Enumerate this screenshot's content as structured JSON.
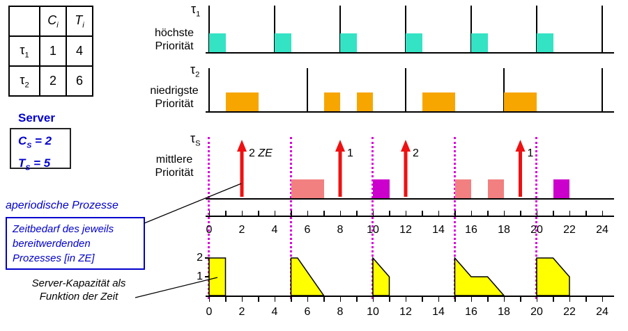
{
  "colors": {
    "accent_blue": "#0000cc"
  },
  "task_table": {
    "col_headers": [
      {
        "base": "C",
        "sub": "i"
      },
      {
        "base": "T",
        "sub": "i"
      }
    ],
    "rows": [
      {
        "task": {
          "base": "τ",
          "sub": "1"
        },
        "c": "1",
        "t": "4"
      },
      {
        "task": {
          "base": "τ",
          "sub": "2"
        },
        "c": "2",
        "t": "6"
      }
    ]
  },
  "server_panel": {
    "title": "Server",
    "lines": [
      {
        "base": "C",
        "sub": "S",
        "rest": " = 2"
      },
      {
        "base": "T",
        "sub": "S",
        "rest": " = 5"
      }
    ]
  },
  "annotations": {
    "aperiodic": "aperiodische Prozesse",
    "zeitbedarf": [
      "Zeitbedarf des jeweils",
      "bereitwerdenden",
      "Prozesses [in ZE]"
    ],
    "capacity": [
      "Server-Kapazität als",
      "Funktion der Zeit"
    ]
  },
  "timelines": {
    "tau1": {
      "label": {
        "base": "τ",
        "sub": "1"
      },
      "priority": [
        "höchste",
        "Priorität"
      ],
      "period": 4,
      "color": "#33e3c4",
      "releases": [
        0,
        4,
        8,
        12,
        16,
        20,
        24
      ],
      "blocks": [
        {
          "start": 0,
          "len": 1
        },
        {
          "start": 4,
          "len": 1
        },
        {
          "start": 8,
          "len": 1
        },
        {
          "start": 12,
          "len": 1
        },
        {
          "start": 16,
          "len": 1
        },
        {
          "start": 20,
          "len": 1
        }
      ]
    },
    "tau2": {
      "label": {
        "base": "τ",
        "sub": "2"
      },
      "priority": [
        "niedrigste",
        "Priorität"
      ],
      "period": 6,
      "color": "#f7a600",
      "releases": [
        0,
        6,
        12,
        18,
        24
      ],
      "blocks": [
        {
          "start": 1,
          "len": 2
        },
        {
          "start": 7,
          "len": 1
        },
        {
          "start": 9,
          "len": 1
        },
        {
          "start": 13,
          "len": 2
        },
        {
          "start": 18,
          "len": 2
        }
      ]
    },
    "tauS": {
      "label": {
        "base": "τ",
        "sub": "S"
      },
      "priority": [
        "mittlere",
        "Priorität"
      ],
      "period": 5,
      "release_line_color": "#dd00dd",
      "arrow_color": "#ee1111",
      "releases": [
        0,
        5,
        10,
        15,
        20
      ],
      "blocks": [
        {
          "start": 5,
          "len": 2,
          "color": "#f28080"
        },
        {
          "start": 10,
          "len": 1,
          "color": "#cc00cc"
        },
        {
          "start": 15,
          "len": 1,
          "color": "#f28080"
        },
        {
          "start": 17,
          "len": 1,
          "color": "#f28080"
        },
        {
          "start": 21,
          "len": 1,
          "color": "#cc00cc"
        }
      ],
      "arrows": [
        {
          "t": 2,
          "label": "2",
          "unit": "ZE"
        },
        {
          "t": 8,
          "label": "1",
          "unit": ""
        },
        {
          "t": 12,
          "label": "2",
          "unit": ""
        },
        {
          "t": 19,
          "label": "1",
          "unit": ""
        }
      ]
    }
  },
  "axes": {
    "max": 24,
    "ticks_every": 1,
    "labels": [
      0,
      2,
      4,
      6,
      8,
      10,
      12,
      14,
      16,
      18,
      20,
      22,
      24
    ]
  },
  "capacity_plot": {
    "fill": "#ffff00",
    "ylabels": [
      "2",
      "1"
    ],
    "shapes": [
      [
        [
          0,
          0
        ],
        [
          0,
          2
        ],
        [
          1,
          2
        ],
        [
          1,
          0
        ]
      ],
      [
        [
          5,
          0
        ],
        [
          5,
          2
        ],
        [
          5.4,
          2
        ],
        [
          7,
          0
        ]
      ],
      [
        [
          10,
          0
        ],
        [
          10,
          2
        ],
        [
          11,
          1
        ],
        [
          11,
          0
        ]
      ],
      [
        [
          15,
          0
        ],
        [
          15,
          2
        ],
        [
          16,
          1
        ],
        [
          17,
          1
        ],
        [
          18,
          0
        ]
      ],
      [
        [
          20,
          0
        ],
        [
          20,
          2
        ],
        [
          21,
          2
        ],
        [
          22,
          1
        ],
        [
          22,
          0
        ]
      ]
    ]
  }
}
